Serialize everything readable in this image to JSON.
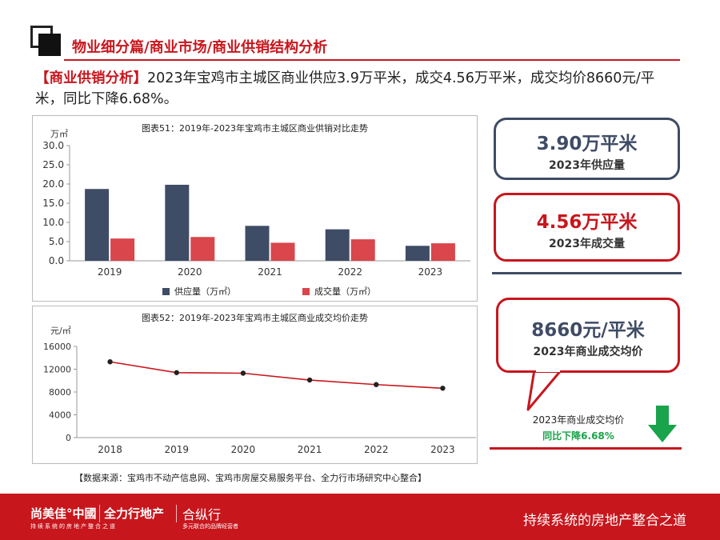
{
  "header": {
    "title": "物业细分篇/商业市场/商业供销结构分析"
  },
  "summary": {
    "tag": "【商业供销分析】",
    "text": "2023年宝鸡市主城区商业供应3.9万平米，成交4.56万平米，成交均价8660元/平米，同比下降6.68%。"
  },
  "chart1": {
    "title": "图表51：2019年-2023年宝鸡市主城区商业供销对比走势",
    "unit": "万㎡"
  },
  "chart2": {
    "title": "图表52：2019年-2023年宝鸡市主城区商业成交均价走势",
    "unit": "元/㎡"
  },
  "chart_data": [
    {
      "type": "bar",
      "title": "图表51：2019年-2023年宝鸡市主城区商业供销对比走势",
      "ylabel": "万㎡",
      "categories": [
        "2019",
        "2020",
        "2021",
        "2022",
        "2023"
      ],
      "series": [
        {
          "name": "供应量（万㎡）",
          "color": "#3f4c65",
          "values": [
            18.7,
            19.8,
            9.1,
            8.2,
            3.9
          ]
        },
        {
          "name": "成交量（万㎡）",
          "color": "#d9464b",
          "values": [
            5.8,
            6.2,
            4.7,
            5.6,
            4.56
          ]
        }
      ],
      "ylim": [
        0,
        30
      ],
      "yticks": [
        "0.0",
        "5.0",
        "10.0",
        "15.0",
        "20.0",
        "25.0",
        "30.0"
      ],
      "legend": "bottom",
      "grid": false
    },
    {
      "type": "line",
      "title": "图表52：2019年-2023年宝鸡市主城区商业成交均价走势",
      "ylabel": "元/㎡",
      "x": [
        "2018",
        "2019",
        "2020",
        "2021",
        "2022",
        "2023"
      ],
      "series": [
        {
          "name": "",
          "color": "#c8161d",
          "values": [
            13300,
            11400,
            11300,
            10100,
            9300,
            8660
          ]
        }
      ],
      "ylim": [
        0,
        16000
      ],
      "yticks": [
        "0",
        "4000",
        "8000",
        "12000",
        "16000"
      ],
      "grid": false
    }
  ],
  "cards": {
    "supply_value": "3.90万平米",
    "supply_label": "2023年供应量",
    "deal_value": "4.56万平米",
    "deal_label": "2023年成交量",
    "price_value": "8660元/平米",
    "price_label": "2023年商业成交均价",
    "yoy_line1": "2023年商业成交均价",
    "yoy_line2": "同比下降6.68%"
  },
  "source": "【数据来源：宝鸡市不动产信息网、宝鸡市房屋交易服务平台、全力行市场研究中心整合】",
  "footer": {
    "brand1": "尚美佳°中國",
    "brand1_sub": "持续系统的房地产整合之道",
    "brand2": "全力行地产",
    "brand3": "合纵行",
    "brand3_sub": "多元联合的品牌经营者",
    "slogan": "持续系统的房地产整合之道"
  },
  "colors": {
    "accent": "#c8161d",
    "navy": "#3f4c65",
    "bar_red": "#d9464b",
    "green": "#19a34a"
  }
}
